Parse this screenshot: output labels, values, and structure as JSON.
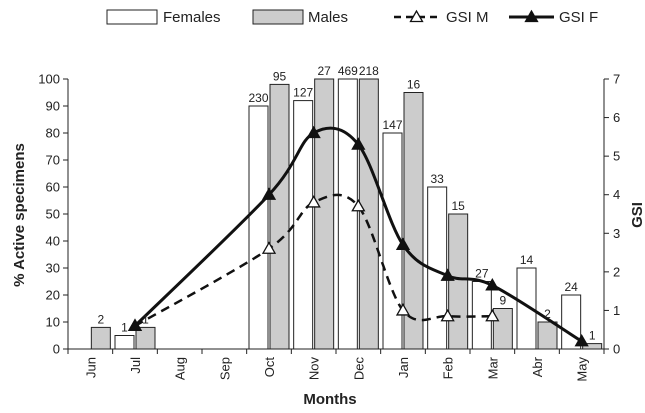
{
  "chart_data": {
    "type": "bar",
    "categories": [
      "Jun",
      "Jul",
      "Aug",
      "Sep",
      "Oct",
      "Nov",
      "Dec",
      "Jan",
      "Feb",
      "Mar",
      "Abr",
      "May"
    ],
    "xlabel": "Months",
    "ylabel": "% Active specimens",
    "y2label": "GSI",
    "ylim": [
      0,
      100
    ],
    "y2lim": [
      0,
      7
    ],
    "yticks": [
      0,
      10,
      20,
      30,
      40,
      50,
      60,
      70,
      80,
      90,
      100
    ],
    "y2ticks": [
      0,
      1,
      2,
      3,
      4,
      5,
      6,
      7
    ],
    "legend": {
      "placement": "top",
      "entries": [
        "Females",
        "Males",
        "GSI M",
        "GSI F"
      ]
    },
    "series": [
      {
        "name": "Females",
        "kind": "bar",
        "axis": "left",
        "color": "#ffffff",
        "values": [
          null,
          5,
          null,
          null,
          90,
          92,
          100,
          80,
          60,
          25,
          30,
          20
        ],
        "labels": [
          "",
          "1",
          "",
          "",
          "230",
          "127",
          "469",
          "147",
          "33",
          "27",
          "14",
          "24"
        ]
      },
      {
        "name": "Males",
        "kind": "bar",
        "axis": "left",
        "color": "#cccccc",
        "values": [
          8,
          8,
          null,
          null,
          98,
          100,
          100,
          95,
          50,
          15,
          10,
          2
        ],
        "labels": [
          "2",
          "1",
          "",
          "",
          "95",
          "27",
          "218",
          "16",
          "15",
          "9",
          "2",
          "1"
        ]
      },
      {
        "name": "GSI M",
        "kind": "line",
        "axis": "right",
        "style": "dashed",
        "marker": "open-triangle",
        "color": "#111111",
        "values": [
          null,
          0.6,
          null,
          null,
          2.6,
          3.8,
          3.7,
          1.0,
          0.85,
          0.85,
          null,
          null
        ]
      },
      {
        "name": "GSI F",
        "kind": "line",
        "axis": "right",
        "style": "solid",
        "marker": "filled-triangle",
        "color": "#111111",
        "values": [
          null,
          0.6,
          null,
          null,
          4.0,
          5.6,
          5.3,
          2.7,
          1.9,
          1.65,
          null,
          0.2
        ]
      }
    ]
  }
}
